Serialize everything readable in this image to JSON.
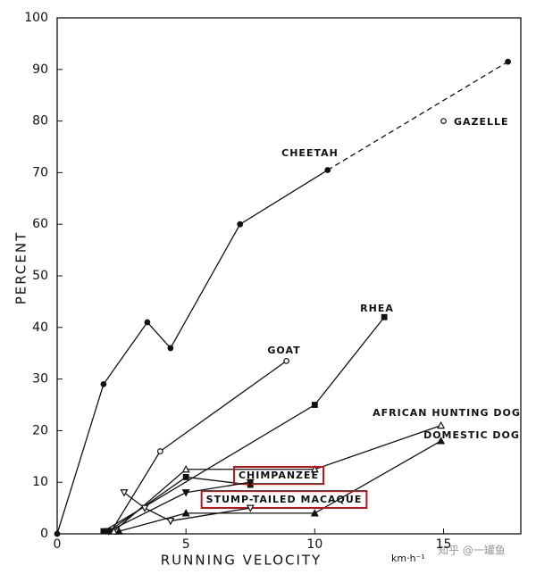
{
  "chart_data": {
    "type": "line",
    "xlabel": "RUNNING VELOCITY",
    "xunit": "km·h⁻¹",
    "ylabel": "PERCENT",
    "xlim": [
      0,
      18
    ],
    "xticks": [
      0,
      5,
      10,
      15
    ],
    "ylim": [
      0,
      100
    ],
    "yticks": [
      0,
      10,
      20,
      30,
      40,
      50,
      60,
      70,
      80,
      90,
      100
    ],
    "grid": false,
    "series": [
      {
        "name": "CHEETAH",
        "color": "#111111",
        "marker": "circle-filled",
        "dashed_from_index": 5,
        "x": [
          0,
          1.8,
          3.5,
          4.4,
          7.1,
          10.5,
          17.5
        ],
        "values": [
          0,
          29,
          41,
          36,
          60,
          70.5,
          91.5
        ]
      },
      {
        "name": "GAZELLE",
        "color": "#111111",
        "marker": "circle-open",
        "x": [
          15
        ],
        "values": [
          80
        ]
      },
      {
        "name": "RHEA",
        "color": "#111111",
        "marker": "square",
        "x": [
          1.8,
          10,
          12.7
        ],
        "values": [
          0.5,
          25,
          42
        ]
      },
      {
        "name": "GOAT",
        "color": "#111111",
        "marker": "circle-open",
        "x": [
          2.1,
          4.0,
          8.9
        ],
        "values": [
          0.5,
          16,
          33.5
        ]
      },
      {
        "name": "AFRICAN HUNTING DOG",
        "color": "#111111",
        "marker": "triangle-open",
        "x": [
          2.2,
          5,
          10,
          14.9
        ],
        "values": [
          0.5,
          12.5,
          12.5,
          21
        ]
      },
      {
        "name": "DOMESTIC DOG",
        "color": "#111111",
        "marker": "triangle",
        "x": [
          2.4,
          5,
          10,
          14.9
        ],
        "values": [
          0.5,
          4,
          4,
          18
        ]
      },
      {
        "name": "CHIMPANZEE",
        "color": "#111111",
        "marker": "square",
        "highlight": "#c0141b",
        "x": [
          2.0,
          5,
          7.5
        ],
        "values": [
          0.5,
          11,
          9.5
        ]
      },
      {
        "name": "STUMP-TAILED MACAQUE",
        "color": "#111111",
        "marker": "triangle-down",
        "highlight": "#c0141b",
        "x": [
          2.0,
          5,
          7.5
        ],
        "values": [
          0.5,
          8,
          10
        ]
      },
      {
        "color": "#111111",
        "marker": "triangle-down-open",
        "x": [
          2.6,
          3.4,
          4.4,
          7.5
        ],
        "values": [
          8,
          5,
          2.5,
          5
        ]
      }
    ],
    "watermark": "知乎 @一罐鱼"
  }
}
